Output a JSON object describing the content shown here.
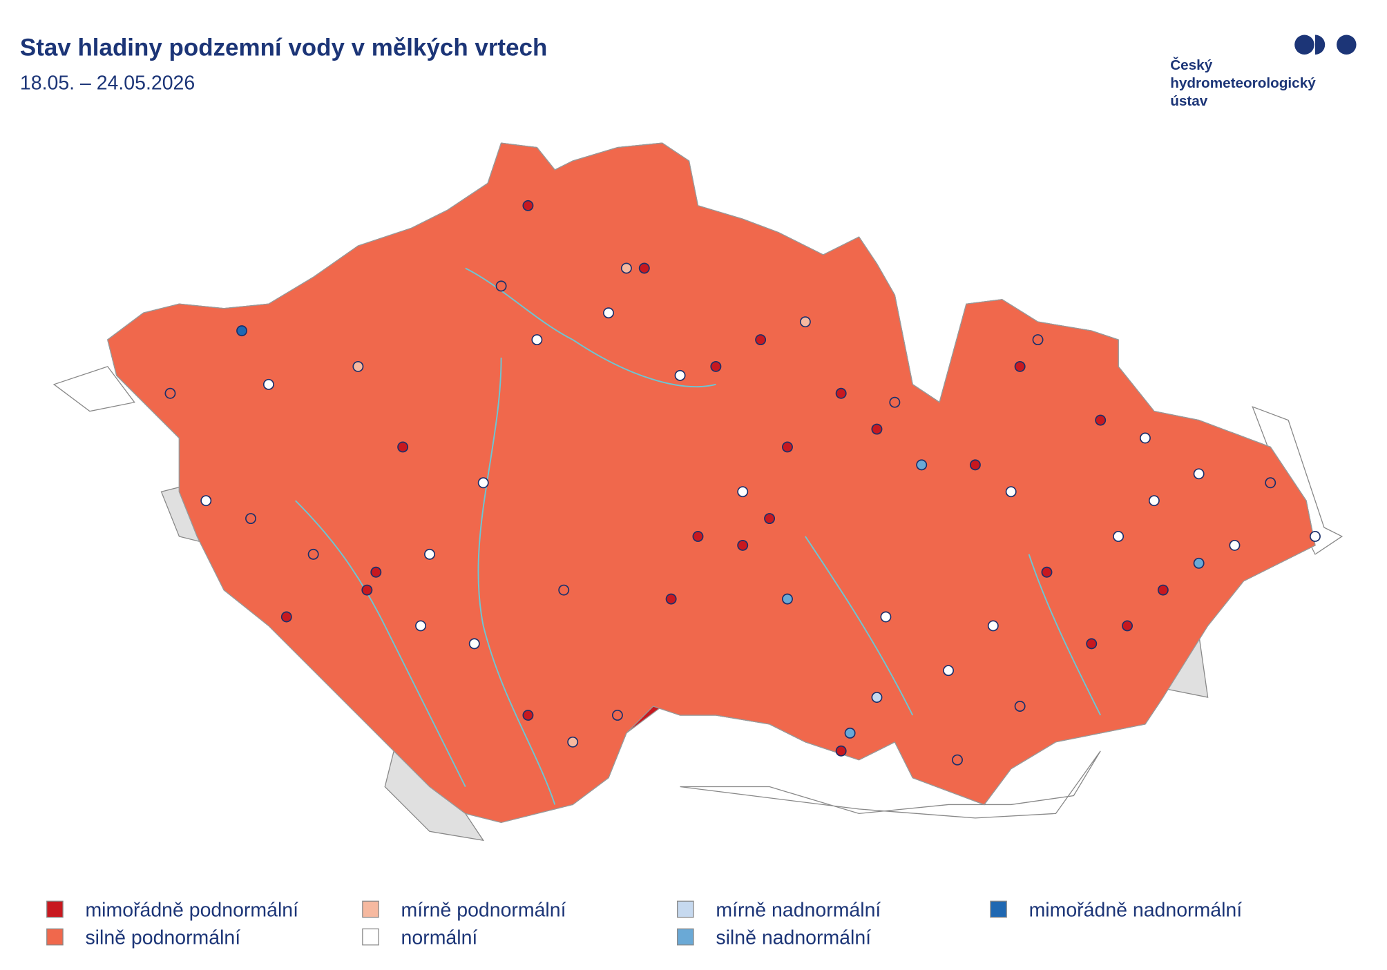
{
  "header": {
    "title": "Stav hladiny podzemní vody v mělkých vrtech",
    "subtitle": "18.05. – 24.05.2026"
  },
  "logo": {
    "lines": [
      "Český",
      "hydrometeorologický",
      "ústav"
    ]
  },
  "legend": {
    "items": [
      {
        "label": "mimořádně podnormální",
        "color": "#c8181f"
      },
      {
        "label": "silně podnormální",
        "color": "#f0684c"
      },
      {
        "label": "mírně podnormální",
        "color": "#f6b9a0"
      },
      {
        "label": "normální",
        "color": "#ffffff"
      },
      {
        "label": "mírně nadnormální",
        "color": "#c6d9ef"
      },
      {
        "label": "silně nadnormální",
        "color": "#6aa9d6"
      },
      {
        "label": "mimořádně nadnormální",
        "color": "#1f68b2"
      }
    ]
  }
}
